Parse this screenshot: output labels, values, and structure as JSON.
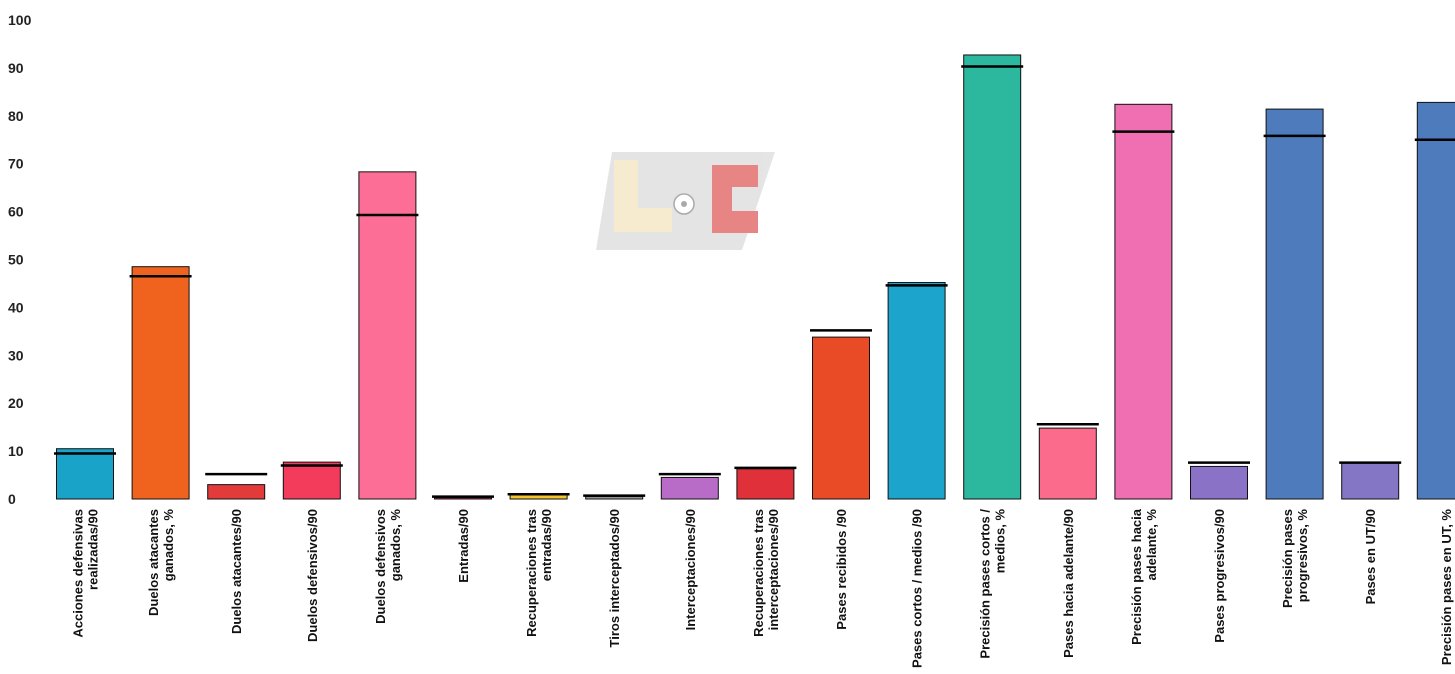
{
  "chart_data": {
    "type": "bar",
    "ylim": [
      0,
      100
    ],
    "yticks": [
      0,
      10,
      20,
      30,
      40,
      50,
      60,
      70,
      80,
      90,
      100
    ],
    "grid": false,
    "legend": "none",
    "categories": [
      "Acciones defensivas realizadas/90",
      "Duelos atacantes ganados, %",
      "Duelos atacantes/90",
      "Duelos defensivos/90",
      "Duelos defensivos ganados, %",
      "Entradas/90",
      "Recuperaciones tras entradas/90",
      "Tiros interceptados/90",
      "Interceptaciones/90",
      "Recuperaciones tras interceptaciones/90",
      "Pases recibidos /90",
      "Pases cortos / medios /90",
      "Precisión pases cortos / medios, %",
      "Pases hacia adelante/90",
      "Precisión pases hacia adelante, %",
      "Pases progresivos/90",
      "Precisión pases progresivos, %",
      "Pases en UT/90",
      "Precisión pases en UT, %"
    ],
    "label_lines": [
      [
        "Acciones defensivas",
        "realizadas/90"
      ],
      [
        "Duelos atacantes",
        "ganados, %"
      ],
      [
        "Duelos atacantes/90"
      ],
      [
        "Duelos defensivos/90"
      ],
      [
        "Duelos defensivos",
        "ganados, %"
      ],
      [
        "Entradas/90"
      ],
      [
        "Recuperaciones tras",
        "entradas/90"
      ],
      [
        "Tiros interceptados/90"
      ],
      [
        "Interceptaciones/90"
      ],
      [
        "Recuperaciones tras",
        "interceptaciones/90"
      ],
      [
        "Pases recibidos /90"
      ],
      [
        "Pases cortos / medios /90"
      ],
      [
        "Precisión pases cortos /",
        "medios, %"
      ],
      [
        "Pases hacia adelante/90"
      ],
      [
        "Precisión pases hacia",
        "adelante, %"
      ],
      [
        "Pases progresivos/90"
      ],
      [
        "Precisión pases",
        "progresivos, %"
      ],
      [
        "Pases en UT/90"
      ],
      [
        "Precisión pases en UT, %"
      ]
    ],
    "values": [
      10.5,
      48.5,
      3.0,
      7.7,
      68.3,
      0.3,
      1.0,
      0.5,
      4.5,
      6.3,
      33.8,
      45.2,
      92.7,
      14.8,
      82.4,
      6.8,
      81.4,
      7.5,
      82.8
    ],
    "benchmarks": [
      9.5,
      46.5,
      5.2,
      7.0,
      59.3,
      0.5,
      1.0,
      0.7,
      5.2,
      6.5,
      35.2,
      44.6,
      90.3,
      15.6,
      76.7,
      7.6,
      75.8,
      7.6,
      75.0
    ],
    "colors": [
      "#1aa3c9",
      "#f0631f",
      "#e33a3a",
      "#f33b5c",
      "#fd6e96",
      "#c4244a",
      "#f3c62e",
      "#a2a2a2",
      "#b86cc8",
      "#e0303a",
      "#e84b25",
      "#1ca4cc",
      "#2cb89e",
      "#fb6b8c",
      "#f06fb2",
      "#8a73c6",
      "#4e7bbc",
      "#8576c5",
      "#4e7bbc"
    ]
  }
}
